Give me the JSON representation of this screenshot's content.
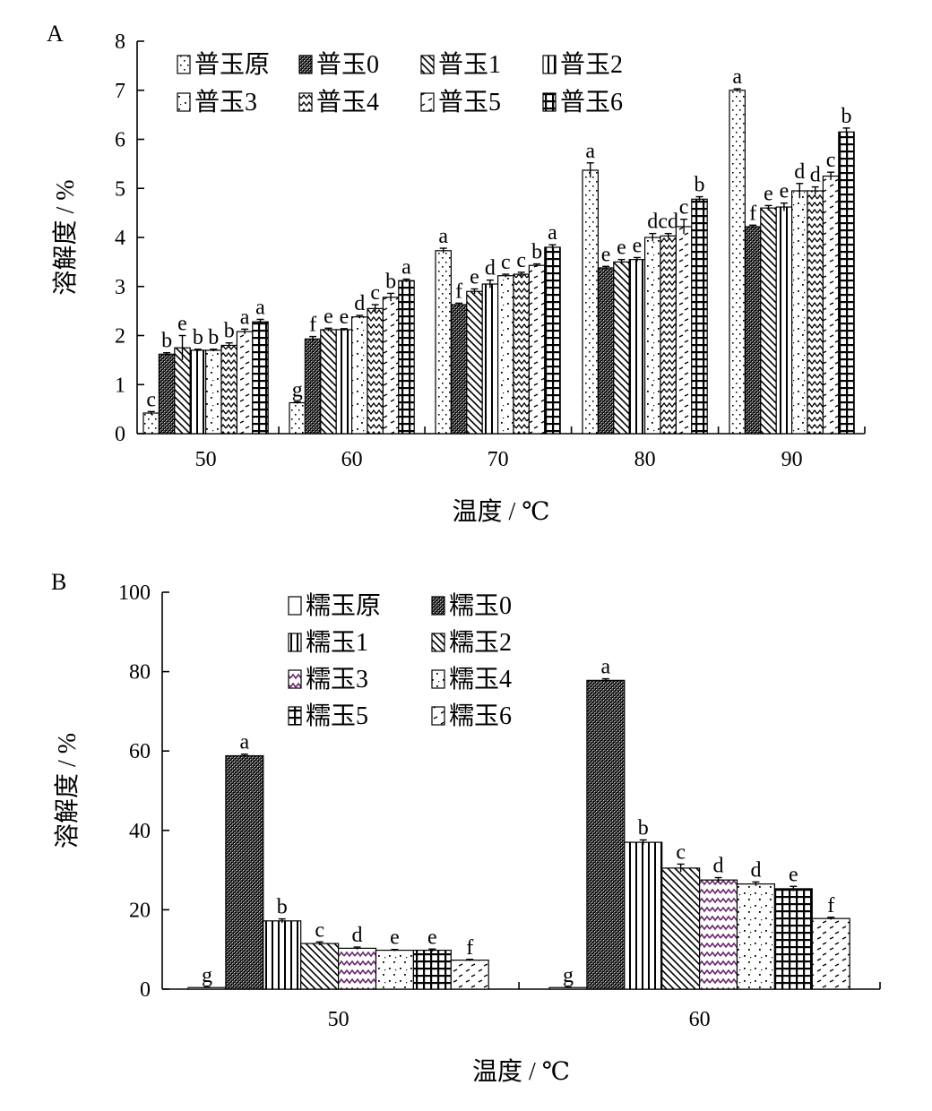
{
  "colors": {
    "axis": "#000000",
    "purple": "#6a2a6e"
  },
  "chart_data": [
    {
      "panel": "A",
      "type": "bar",
      "xlabel": "温度 / ℃",
      "ylabel": "溶解度 / %",
      "ylim": [
        0,
        8
      ],
      "yticks": [
        "0",
        "1",
        "2",
        "3",
        "4",
        "5",
        "6",
        "7",
        "8"
      ],
      "categories": [
        "50",
        "60",
        "70",
        "80",
        "90"
      ],
      "legend_placement": "top-left",
      "series": [
        {
          "name": "普玉原",
          "pattern": "dots",
          "values": [
            0.42,
            0.63,
            3.73,
            5.37,
            7.0
          ],
          "errors": [
            0.03,
            0.02,
            0.05,
            0.15,
            0.03
          ],
          "labels": [
            "c",
            "g",
            "a",
            "a",
            "a"
          ]
        },
        {
          "name": "普玉0",
          "pattern": "dense",
          "values": [
            1.62,
            1.93,
            2.63,
            3.38,
            4.22
          ],
          "errors": [
            0.03,
            0.05,
            0.03,
            0.03,
            0.03
          ],
          "labels": [
            "b",
            "f",
            "f",
            "e",
            "f"
          ]
        },
        {
          "name": "普玉1",
          "pattern": "diag",
          "values": [
            1.75,
            2.12,
            2.9,
            3.5,
            4.6
          ],
          "errors": [
            0.25,
            0.03,
            0.05,
            0.05,
            0.05
          ],
          "labels": [
            "e",
            "e",
            "e",
            "e",
            "e"
          ]
        },
        {
          "name": "普玉2",
          "pattern": "vert",
          "values": [
            1.7,
            2.12,
            3.05,
            3.55,
            4.62
          ],
          "errors": [
            0.02,
            0.02,
            0.08,
            0.04,
            0.08
          ],
          "labels": [
            "b",
            "e",
            "d",
            "e",
            "e"
          ]
        },
        {
          "name": "普玉3",
          "pattern": "sparse",
          "values": [
            1.7,
            2.38,
            3.22,
            4.0,
            4.95
          ],
          "errors": [
            0.02,
            0.03,
            0.03,
            0.08,
            0.15
          ],
          "labels": [
            "b",
            "d",
            "c",
            "d",
            "d"
          ]
        },
        {
          "name": "普玉4",
          "pattern": "zigzag",
          "values": [
            1.8,
            2.55,
            3.25,
            4.03,
            4.95
          ],
          "errors": [
            0.05,
            0.08,
            0.04,
            0.05,
            0.08
          ],
          "labels": [
            "b",
            "c",
            "c",
            "cd",
            "d"
          ]
        },
        {
          "name": "普玉5",
          "pattern": "dash",
          "values": [
            2.08,
            2.78,
            3.43,
            4.22,
            5.25
          ],
          "errors": [
            0.05,
            0.08,
            0.03,
            0.15,
            0.08
          ],
          "labels": [
            "a",
            "b",
            "b",
            "c",
            "c"
          ]
        },
        {
          "name": "普玉6",
          "pattern": "grid",
          "values": [
            2.28,
            3.12,
            3.8,
            4.78,
            6.15
          ],
          "errors": [
            0.05,
            0.03,
            0.05,
            0.05,
            0.08
          ],
          "labels": [
            "a",
            "a",
            "a",
            "b",
            "b"
          ]
        }
      ]
    },
    {
      "panel": "B",
      "type": "bar",
      "xlabel": "温度 / ℃",
      "ylabel": "溶解度 / %",
      "ylim": [
        0,
        100
      ],
      "yticks": [
        "0",
        "20",
        "40",
        "60",
        "80",
        "100"
      ],
      "categories": [
        "50",
        "60"
      ],
      "legend_placement": "top-center",
      "series": [
        {
          "name": "糯玉原",
          "pattern": "plain",
          "values": [
            0.4,
            0.4
          ],
          "errors": [
            0.1,
            0.1
          ],
          "labels": [
            "g",
            "g"
          ]
        },
        {
          "name": "糯玉0",
          "pattern": "dense",
          "values": [
            58.8,
            77.8
          ],
          "errors": [
            0.4,
            0.4
          ],
          "labels": [
            "a",
            "a"
          ]
        },
        {
          "name": "糯玉1",
          "pattern": "vert",
          "values": [
            17.2,
            37.0
          ],
          "errors": [
            0.5,
            0.6
          ],
          "labels": [
            "b",
            "b"
          ]
        },
        {
          "name": "糯玉2",
          "pattern": "diag",
          "values": [
            11.5,
            30.5
          ],
          "errors": [
            0.4,
            1.0
          ],
          "labels": [
            "c",
            "c"
          ]
        },
        {
          "name": "糯玉3",
          "pattern": "zigzag-purple",
          "values": [
            10.3,
            27.5
          ],
          "errors": [
            0.3,
            0.6
          ],
          "labels": [
            "d",
            "d"
          ]
        },
        {
          "name": "糯玉4",
          "pattern": "sparse",
          "values": [
            9.8,
            26.5
          ],
          "errors": [
            0.2,
            0.5
          ],
          "labels": [
            "e",
            "d"
          ]
        },
        {
          "name": "糯玉5",
          "pattern": "grid",
          "values": [
            9.8,
            25.3
          ],
          "errors": [
            0.3,
            0.6
          ],
          "labels": [
            "e",
            "e"
          ]
        },
        {
          "name": "糯玉6",
          "pattern": "dash",
          "values": [
            7.3,
            17.8
          ],
          "errors": [
            0.2,
            0.3
          ],
          "labels": [
            "f",
            "f"
          ]
        }
      ]
    }
  ]
}
